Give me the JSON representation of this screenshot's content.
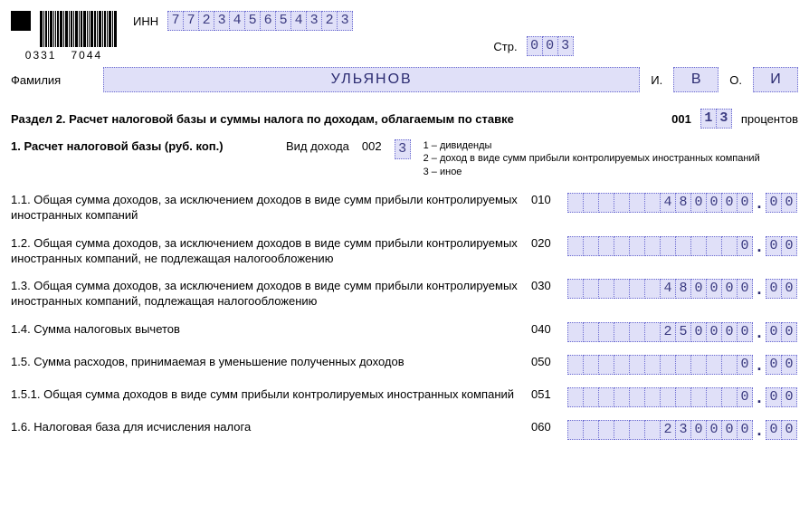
{
  "header": {
    "barcode_left": "0331",
    "barcode_right": "7044",
    "inn_label": "ИНН",
    "inn": [
      "7",
      "7",
      "2",
      "3",
      "4",
      "5",
      "6",
      "5",
      "4",
      "3",
      "2",
      "3"
    ],
    "page_label": "Стр.",
    "page": [
      "0",
      "0",
      "3"
    ],
    "surname_label": "Фамилия",
    "surname": "УЛЬЯНОВ",
    "i_label": "И.",
    "first_initial": "В",
    "o_label": "О.",
    "patronymic_initial": "И"
  },
  "section": {
    "title": "Раздел 2. Расчет налоговой базы и суммы налога по доходам, облагаемым по ставке",
    "rate_code": "001",
    "rate": [
      "1",
      "3"
    ],
    "rate_suffix": "процентов"
  },
  "sub": {
    "title": "1. Расчет налоговой базы (руб. коп.)",
    "kind_label": "Вид дохода",
    "kind_code": "002",
    "kind_val": "3",
    "legend1": "1 – дивиденды",
    "legend2": "2 – доход в виде сумм прибыли контролируемых иностранных компаний",
    "legend3": "3 – иное"
  },
  "rows": [
    {
      "label": "1.1. Общая сумма доходов, за исключением доходов в виде сумм прибыли контролируемых иностранных компаний",
      "code": "010",
      "int": [
        "",
        "",
        "",
        "",
        "",
        "",
        "4",
        "8",
        "0",
        "0",
        "0",
        "0"
      ],
      "dec": [
        "0",
        "0"
      ]
    },
    {
      "label": "1.2. Общая сумма доходов, за исключением доходов в виде сумм прибыли контролируемых иностранных компаний, не подлежащая налогообложению",
      "code": "020",
      "int": [
        "",
        "",
        "",
        "",
        "",
        "",
        "",
        "",
        "",
        "",
        "",
        "0"
      ],
      "dec": [
        "0",
        "0"
      ]
    },
    {
      "label": "1.3. Общая сумма доходов, за исключением доходов в виде сумм прибыли контролируемых иностранных компаний, подлежащая налогообложению",
      "code": "030",
      "int": [
        "",
        "",
        "",
        "",
        "",
        "",
        "4",
        "8",
        "0",
        "0",
        "0",
        "0"
      ],
      "dec": [
        "0",
        "0"
      ]
    },
    {
      "label": "1.4. Сумма налоговых вычетов",
      "code": "040",
      "int": [
        "",
        "",
        "",
        "",
        "",
        "",
        "2",
        "5",
        "0",
        "0",
        "0",
        "0"
      ],
      "dec": [
        "0",
        "0"
      ]
    },
    {
      "label": "1.5. Сумма расходов, принимаемая в уменьшение полученных доходов",
      "code": "050",
      "int": [
        "",
        "",
        "",
        "",
        "",
        "",
        "",
        "",
        "",
        "",
        "",
        "0"
      ],
      "dec": [
        "0",
        "0"
      ]
    },
    {
      "label": "1.5.1. Общая сумма доходов в виде сумм прибыли контролируемых иностранных компаний",
      "code": "051",
      "int": [
        "",
        "",
        "",
        "",
        "",
        "",
        "",
        "",
        "",
        "",
        "",
        "0"
      ],
      "dec": [
        "0",
        "0"
      ]
    },
    {
      "label": "1.6. Налоговая база для исчисления налога",
      "code": "060",
      "int": [
        "",
        "",
        "",
        "",
        "",
        "",
        "2",
        "3",
        "0",
        "0",
        "0",
        "0"
      ],
      "dec": [
        "0",
        "0"
      ]
    }
  ],
  "style": {
    "cell_bg": "#e0e0f8",
    "cell_border": "#6a6ad0",
    "text_color": "#2a2a70",
    "int_cells": 12,
    "dec_cells": 2
  }
}
